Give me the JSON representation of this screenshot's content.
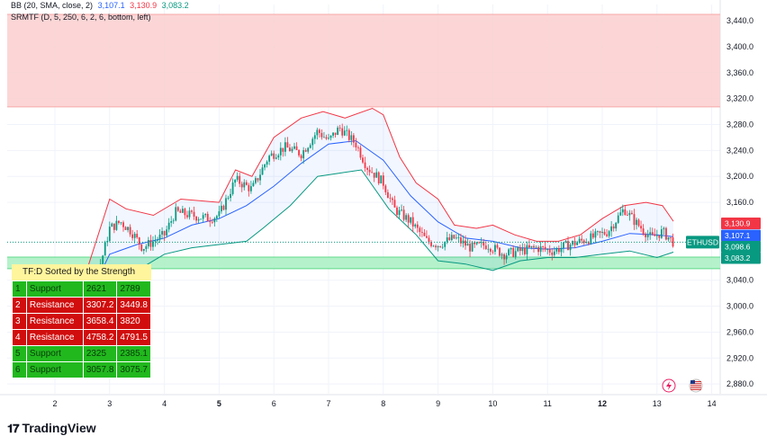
{
  "indicators": {
    "bb": {
      "name": "BB (20, SMA, close, 2)",
      "v1": "3,107.1",
      "v2": "3,130.9",
      "v3": "3,083.2",
      "c1": "#2962ff",
      "c2": "#f23645",
      "c3": "#089981"
    },
    "srmtf": {
      "name": "SRMTF (D, 5, 250, 6, 2, 6, bottom, left)"
    }
  },
  "chart_data": {
    "type": "candlestick",
    "symbol": "ETHUSD",
    "x_ticks": [
      {
        "label": "2",
        "bold": false
      },
      {
        "label": "3",
        "bold": false
      },
      {
        "label": "4",
        "bold": false
      },
      {
        "label": "5",
        "bold": true
      },
      {
        "label": "6",
        "bold": false
      },
      {
        "label": "7",
        "bold": false
      },
      {
        "label": "8",
        "bold": false
      },
      {
        "label": "9",
        "bold": false
      },
      {
        "label": "10",
        "bold": false
      },
      {
        "label": "11",
        "bold": false
      },
      {
        "label": "12",
        "bold": true
      },
      {
        "label": "13",
        "bold": false
      },
      {
        "label": "14",
        "bold": false
      }
    ],
    "y_ticks": [
      "3,440.0",
      "3,400.0",
      "3,360.0",
      "3,320.0",
      "3,280.0",
      "3,240.0",
      "3,200.0",
      "3,160.0",
      "3,040.0",
      "3,000.0",
      "2,960.0",
      "2,920.0",
      "2,880.0"
    ],
    "ylim": [
      2865,
      3465
    ],
    "current_price": 3098.6,
    "price_labels": [
      {
        "value": "3,130.9",
        "color": "#f23645"
      },
      {
        "value": "3,107.1",
        "color": "#2962ff"
      },
      {
        "value": "3,098.6",
        "color": "#089981"
      },
      {
        "value": "3,083.2",
        "color": "#089981"
      }
    ],
    "zones": [
      {
        "type": "resistance",
        "from": 3307.2,
        "to": 3449.8,
        "color": "#fccfcf"
      },
      {
        "type": "support",
        "from": 3057.8,
        "to": 3075.7,
        "color": "#a8f0c2"
      }
    ],
    "price_path": [
      {
        "day": 1.5,
        "price": 2985
      },
      {
        "day": 2.0,
        "price": 2978
      },
      {
        "day": 2.4,
        "price": 2985
      },
      {
        "day": 2.7,
        "price": 3030
      },
      {
        "day": 2.85,
        "price": 3070
      },
      {
        "day": 3.0,
        "price": 3120
      },
      {
        "day": 3.2,
        "price": 3130
      },
      {
        "day": 3.4,
        "price": 3115
      },
      {
        "day": 3.6,
        "price": 3090
      },
      {
        "day": 3.8,
        "price": 3100
      },
      {
        "day": 4.0,
        "price": 3110
      },
      {
        "day": 4.2,
        "price": 3145
      },
      {
        "day": 4.5,
        "price": 3140
      },
      {
        "day": 4.8,
        "price": 3135
      },
      {
        "day": 5.0,
        "price": 3140
      },
      {
        "day": 5.3,
        "price": 3195
      },
      {
        "day": 5.6,
        "price": 3180
      },
      {
        "day": 5.9,
        "price": 3230
      },
      {
        "day": 6.2,
        "price": 3245
      },
      {
        "day": 6.5,
        "price": 3235
      },
      {
        "day": 6.8,
        "price": 3270
      },
      {
        "day": 7.0,
        "price": 3255
      },
      {
        "day": 7.2,
        "price": 3275
      },
      {
        "day": 7.5,
        "price": 3250
      },
      {
        "day": 7.7,
        "price": 3215
      },
      {
        "day": 8.0,
        "price": 3190
      },
      {
        "day": 8.2,
        "price": 3150
      },
      {
        "day": 8.5,
        "price": 3130
      },
      {
        "day": 8.8,
        "price": 3100
      },
      {
        "day": 9.0,
        "price": 3095
      },
      {
        "day": 9.3,
        "price": 3105
      },
      {
        "day": 9.6,
        "price": 3090
      },
      {
        "day": 9.9,
        "price": 3095
      },
      {
        "day": 10.2,
        "price": 3080
      },
      {
        "day": 10.5,
        "price": 3085
      },
      {
        "day": 10.8,
        "price": 3090
      },
      {
        "day": 11.1,
        "price": 3085
      },
      {
        "day": 11.4,
        "price": 3095
      },
      {
        "day": 11.8,
        "price": 3105
      },
      {
        "day": 12.1,
        "price": 3115
      },
      {
        "day": 12.4,
        "price": 3150
      },
      {
        "day": 12.6,
        "price": 3130
      },
      {
        "day": 12.9,
        "price": 3105
      },
      {
        "day": 13.1,
        "price": 3115
      },
      {
        "day": 13.3,
        "price": 3098.6
      }
    ],
    "bb_upper": [
      {
        "day": 2.6,
        "price": 3060
      },
      {
        "day": 3.0,
        "price": 3165
      },
      {
        "day": 3.3,
        "price": 3150
      },
      {
        "day": 3.8,
        "price": 3140
      },
      {
        "day": 4.3,
        "price": 3165
      },
      {
        "day": 5.0,
        "price": 3160
      },
      {
        "day": 5.3,
        "price": 3210
      },
      {
        "day": 5.6,
        "price": 3200
      },
      {
        "day": 6.0,
        "price": 3260
      },
      {
        "day": 6.5,
        "price": 3290
      },
      {
        "day": 6.9,
        "price": 3300
      },
      {
        "day": 7.3,
        "price": 3290
      },
      {
        "day": 7.8,
        "price": 3305
      },
      {
        "day": 8.0,
        "price": 3295
      },
      {
        "day": 8.3,
        "price": 3230
      },
      {
        "day": 8.6,
        "price": 3190
      },
      {
        "day": 9.0,
        "price": 3165
      },
      {
        "day": 9.3,
        "price": 3125
      },
      {
        "day": 9.7,
        "price": 3120
      },
      {
        "day": 10.0,
        "price": 3125
      },
      {
        "day": 10.4,
        "price": 3110
      },
      {
        "day": 10.8,
        "price": 3100
      },
      {
        "day": 11.2,
        "price": 3100
      },
      {
        "day": 11.6,
        "price": 3110
      },
      {
        "day": 12.0,
        "price": 3135
      },
      {
        "day": 12.4,
        "price": 3155
      },
      {
        "day": 12.8,
        "price": 3160
      },
      {
        "day": 13.1,
        "price": 3155
      },
      {
        "day": 13.3,
        "price": 3130.9
      }
    ],
    "bb_middle": [
      {
        "day": 2.6,
        "price": 3010
      },
      {
        "day": 3.0,
        "price": 3080
      },
      {
        "day": 3.5,
        "price": 3095
      },
      {
        "day": 4.0,
        "price": 3105
      },
      {
        "day": 4.5,
        "price": 3125
      },
      {
        "day": 5.0,
        "price": 3135
      },
      {
        "day": 5.5,
        "price": 3155
      },
      {
        "day": 6.0,
        "price": 3185
      },
      {
        "day": 6.5,
        "price": 3220
      },
      {
        "day": 7.0,
        "price": 3250
      },
      {
        "day": 7.5,
        "price": 3255
      },
      {
        "day": 8.0,
        "price": 3225
      },
      {
        "day": 8.5,
        "price": 3170
      },
      {
        "day": 9.0,
        "price": 3130
      },
      {
        "day": 9.5,
        "price": 3105
      },
      {
        "day": 10.0,
        "price": 3100
      },
      {
        "day": 10.5,
        "price": 3090
      },
      {
        "day": 11.0,
        "price": 3088
      },
      {
        "day": 11.5,
        "price": 3090
      },
      {
        "day": 12.0,
        "price": 3100
      },
      {
        "day": 12.5,
        "price": 3112
      },
      {
        "day": 13.0,
        "price": 3110
      },
      {
        "day": 13.3,
        "price": 3107.1
      }
    ],
    "bb_lower": [
      {
        "day": 2.6,
        "price": 2970
      },
      {
        "day": 3.0,
        "price": 3020
      },
      {
        "day": 3.5,
        "price": 3055
      },
      {
        "day": 4.0,
        "price": 3080
      },
      {
        "day": 4.5,
        "price": 3090
      },
      {
        "day": 5.0,
        "price": 3095
      },
      {
        "day": 5.5,
        "price": 3100
      },
      {
        "day": 5.8,
        "price": 3120
      },
      {
        "day": 6.3,
        "price": 3155
      },
      {
        "day": 6.8,
        "price": 3200
      },
      {
        "day": 7.2,
        "price": 3205
      },
      {
        "day": 7.6,
        "price": 3210
      },
      {
        "day": 8.1,
        "price": 3150
      },
      {
        "day": 8.6,
        "price": 3110
      },
      {
        "day": 9.0,
        "price": 3070
      },
      {
        "day": 9.5,
        "price": 3065
      },
      {
        "day": 10.0,
        "price": 3055
      },
      {
        "day": 10.5,
        "price": 3070
      },
      {
        "day": 11.0,
        "price": 3075
      },
      {
        "day": 11.5,
        "price": 3075
      },
      {
        "day": 12.0,
        "price": 3080
      },
      {
        "day": 12.5,
        "price": 3085
      },
      {
        "day": 13.0,
        "price": 3075
      },
      {
        "day": 13.3,
        "price": 3083.2
      }
    ]
  },
  "sr_table": {
    "title": "TF:D Sorted by the Strength",
    "rows": [
      {
        "n": "1",
        "type": "Support",
        "from": "2621",
        "to": "2789"
      },
      {
        "n": "2",
        "type": "Resistance",
        "from": "3307.2",
        "to": "3449.8"
      },
      {
        "n": "3",
        "type": "Resistance",
        "from": "3658.4",
        "to": "3820"
      },
      {
        "n": "4",
        "type": "Resistance",
        "from": "4758.2",
        "to": "4791.5"
      },
      {
        "n": "5",
        "type": "Support",
        "from": "2325",
        "to": "2385.1"
      },
      {
        "n": "6",
        "type": "Support",
        "from": "3057.8",
        "to": "3075.7"
      }
    ]
  },
  "footer": {
    "brand": "TradingView"
  }
}
